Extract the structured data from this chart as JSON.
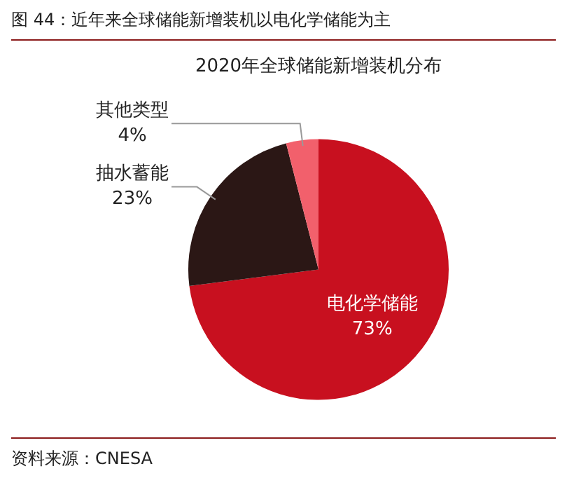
{
  "chart_data": {
    "type": "pie",
    "title": "图 44：近年来全球储能新增装机以电化学储能为主",
    "subtitle": "2020年全球储能新增装机分布",
    "categories": [
      "电化学储能",
      "抽水蓄能",
      "其他类型"
    ],
    "values": [
      73,
      23,
      4
    ],
    "colors": [
      "#c8101f",
      "#2b1715",
      "#f2606c"
    ],
    "value_labels": [
      "73%",
      "23%",
      "4%"
    ],
    "legend": false,
    "annotations": [
      "资料来源：CNESA"
    ]
  }
}
